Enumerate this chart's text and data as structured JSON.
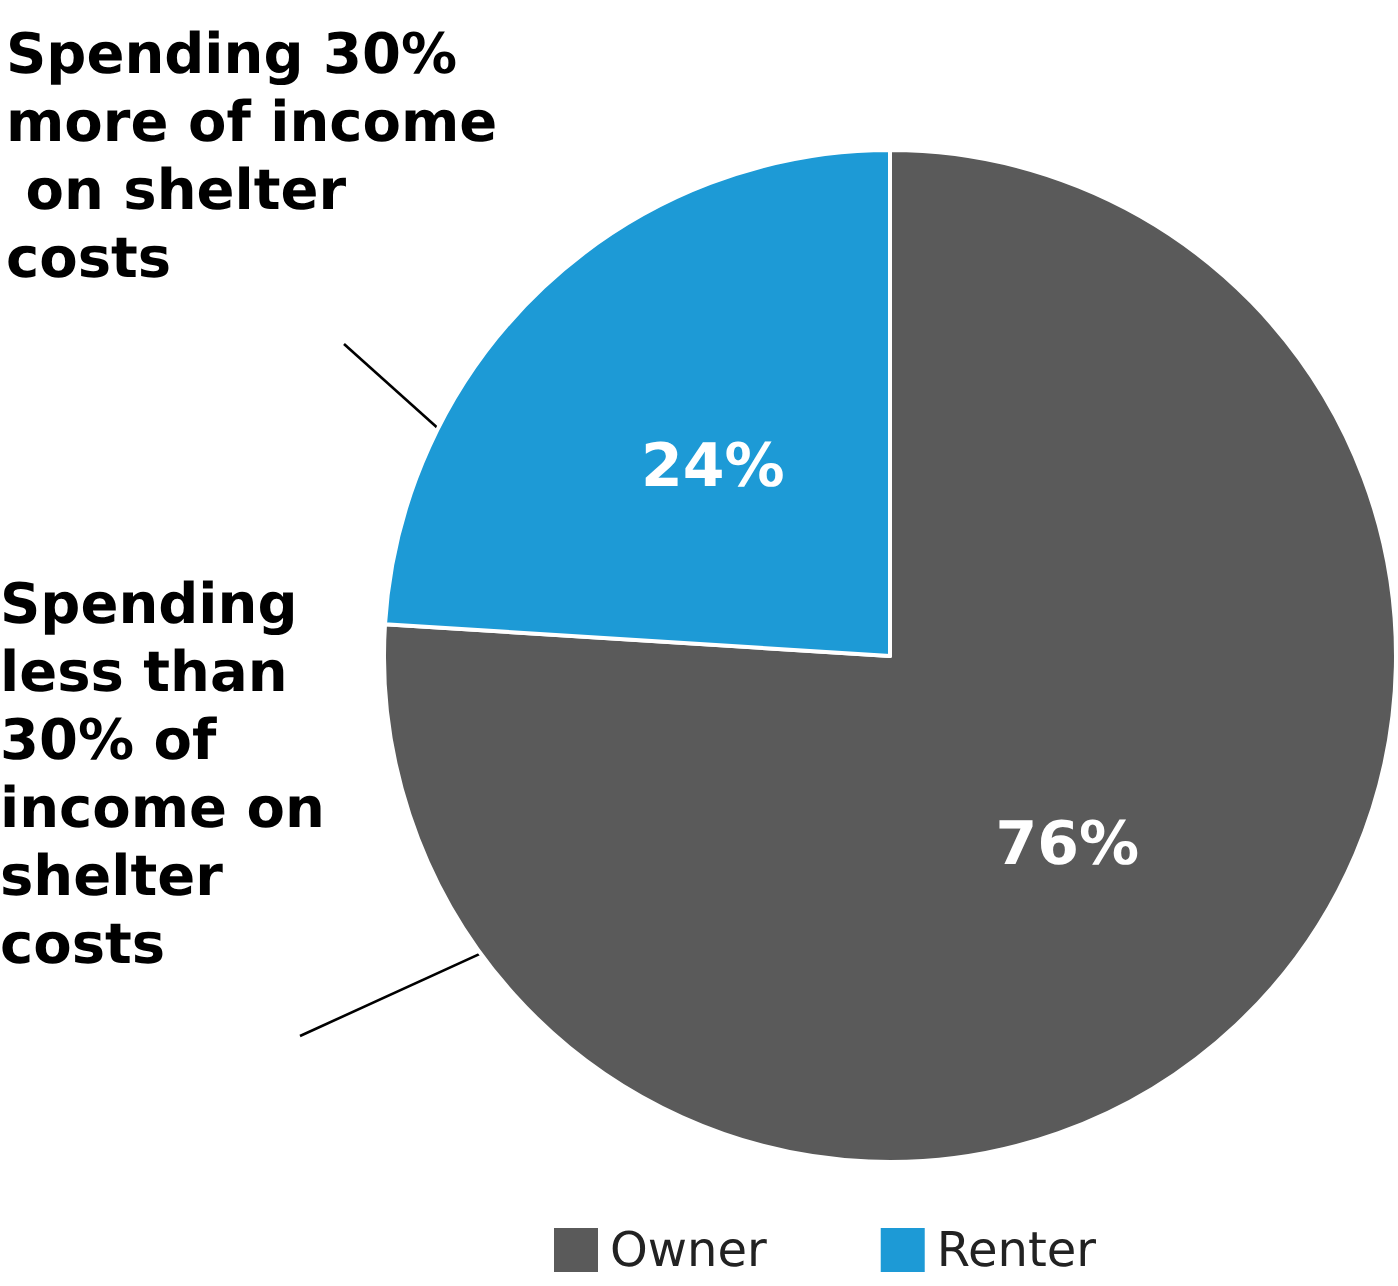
{
  "chart_data": {
    "type": "pie",
    "categories": [
      "Owner",
      "Renter"
    ],
    "values": [
      76,
      24
    ],
    "colors": [
      "#5a5a5a",
      "#1d9ad6"
    ],
    "value_labels": [
      "76%",
      "24%"
    ],
    "legend": "bottom",
    "annotations": [
      "Spending 30% more of income on shelter costs",
      "Spending less than 30% of income on shelter costs"
    ]
  }
}
